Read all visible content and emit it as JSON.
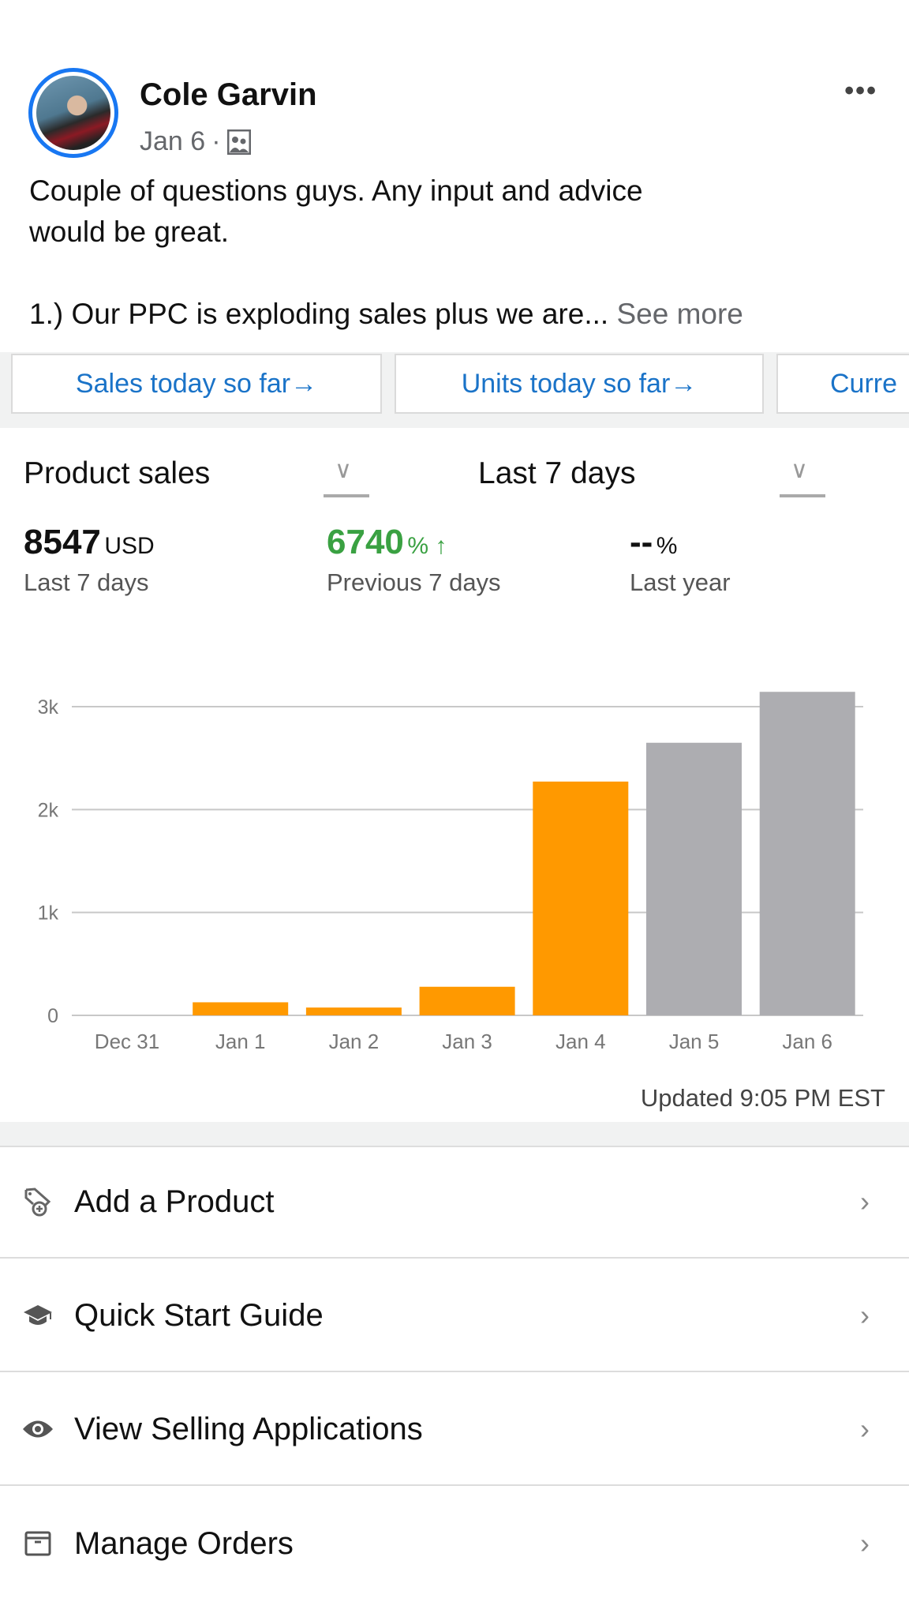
{
  "post": {
    "author": "Cole Garvin",
    "date": "Jan 6",
    "separator": "·",
    "audience_icon": "group-icon",
    "more_icon": "•••",
    "text_line1": "Couple of questions guys. Any input and advice",
    "text_line2": "would be great.",
    "text_line3": "1.) Our PPC is exploding sales plus we are...",
    "see_more": "See more"
  },
  "quick_buttons": [
    "Sales today so far→",
    "Units today so far→",
    "Curre"
  ],
  "dashboard": {
    "metric_select": "Product sales",
    "range_select": "Last 7 days",
    "metrics": [
      {
        "value": "8547",
        "unit": "USD",
        "label": "Last 7 days"
      },
      {
        "value": "6740",
        "unit": "% ↑",
        "label": "Previous 7 days"
      },
      {
        "value": "--",
        "unit": "%",
        "label": "Last year"
      }
    ],
    "updated": "Updated 9:05 PM EST",
    "colors": {
      "positive": "#3aa142",
      "current_bars": "#ff9900",
      "other_bars": "#adadb1"
    }
  },
  "chart_data": {
    "type": "bar",
    "categories": [
      "Dec 31",
      "Jan 1",
      "Jan 2",
      "Jan 3",
      "Jan 4",
      "Jan 5",
      "Jan 6"
    ],
    "values": [
      0,
      127,
      76,
      278,
      2272,
      2649,
      3144
    ],
    "bar_colors": [
      "#ff9900",
      "#ff9900",
      "#ff9900",
      "#ff9900",
      "#ff9900",
      "#adadb1",
      "#adadb1"
    ],
    "yticks": [
      0,
      1000,
      2000,
      3000
    ],
    "ytick_labels": [
      "0",
      "1k",
      "2k",
      "3k"
    ],
    "ylim": [
      0,
      3150
    ],
    "grid": true
  },
  "menu": [
    {
      "label": "Add a Product",
      "icon": "tag-plus-icon"
    },
    {
      "label": "Quick Start Guide",
      "icon": "graduation-cap-icon"
    },
    {
      "label": "View Selling Applications",
      "icon": "eye-icon"
    },
    {
      "label": "Manage Orders",
      "icon": "box-icon"
    }
  ],
  "chevron": "›"
}
